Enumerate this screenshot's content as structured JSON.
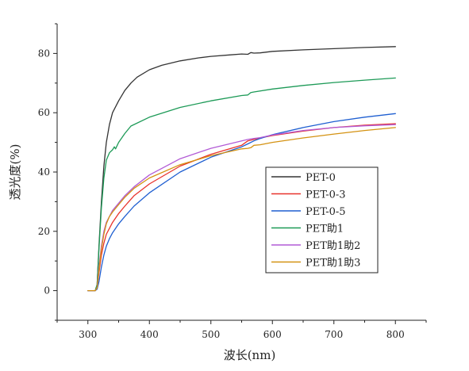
{
  "chart_data": {
    "type": "line",
    "title": "",
    "xlabel": "波长(nm)",
    "ylabel": "透光度(%)",
    "xlim": [
      250,
      850
    ],
    "ylim": [
      -10,
      90
    ],
    "xticks": [
      300,
      400,
      500,
      600,
      700,
      800
    ],
    "yticks": [
      0,
      20,
      40,
      60,
      80
    ],
    "grid": false,
    "legend_position": "center-right",
    "series": [
      {
        "name": "PET-0",
        "color": "#333333",
        "x": [
          300,
          312,
          315,
          318,
          322,
          326,
          330,
          335,
          340,
          350,
          360,
          370,
          380,
          400,
          420,
          450,
          480,
          500,
          530,
          550,
          560,
          565,
          570,
          580,
          600,
          650,
          700,
          750,
          800
        ],
        "y": [
          0,
          0,
          2,
          15,
          30,
          42,
          50,
          56,
          60,
          64,
          67.5,
          70,
          72,
          74.5,
          76,
          77.5,
          78.5,
          79,
          79.5,
          79.8,
          79.7,
          80.3,
          80.1,
          80.2,
          80.7,
          81.2,
          81.6,
          82,
          82.3
        ]
      },
      {
        "name": "PET-0-3",
        "color": "#e8332c",
        "x": [
          300,
          312,
          315,
          318,
          322,
          326,
          330,
          335,
          340,
          350,
          360,
          375,
          400,
          450,
          500,
          550,
          560,
          570,
          580,
          600,
          650,
          700,
          750,
          800
        ],
        "y": [
          0,
          0,
          1,
          6,
          12,
          16,
          19,
          21,
          23,
          26,
          28.5,
          32,
          36,
          42,
          46,
          49,
          50.5,
          51,
          51.5,
          52.3,
          53.8,
          55,
          55.8,
          56.3
        ]
      },
      {
        "name": "PET-0-5",
        "color": "#1f5fd1",
        "x": [
          300,
          312,
          315,
          318,
          322,
          326,
          330,
          335,
          340,
          350,
          360,
          375,
          400,
          450,
          500,
          550,
          560,
          570,
          580,
          600,
          650,
          700,
          750,
          800
        ],
        "y": [
          0,
          0,
          0.5,
          3,
          8,
          12,
          15,
          17.5,
          19.5,
          22.5,
          25,
          28.5,
          33,
          40,
          45,
          48.5,
          49.5,
          50.5,
          51.3,
          52.6,
          55,
          57,
          58.5,
          59.7
        ]
      },
      {
        "name": "PET助1",
        "color": "#1d9a57",
        "x": [
          300,
          312,
          315,
          318,
          322,
          326,
          330,
          335,
          340,
          343,
          345,
          350,
          360,
          370,
          400,
          450,
          500,
          550,
          560,
          565,
          570,
          600,
          650,
          700,
          750,
          800
        ],
        "y": [
          0,
          0,
          2,
          14,
          28,
          38,
          44,
          46.5,
          47.5,
          48.5,
          47.8,
          50,
          53,
          55.5,
          58.5,
          61.8,
          64,
          65.8,
          66,
          66.8,
          67,
          68,
          69.2,
          70.2,
          71,
          71.7
        ]
      },
      {
        "name": "PET助1助2",
        "color": "#b25bd6",
        "x": [
          300,
          312,
          315,
          318,
          322,
          326,
          330,
          335,
          340,
          350,
          360,
          375,
          400,
          450,
          500,
          550,
          560,
          570,
          580,
          600,
          650,
          700,
          750,
          800
        ],
        "y": [
          0,
          0,
          1,
          8,
          15,
          20,
          23,
          25,
          27,
          29.5,
          32,
          35,
          39,
          44.5,
          48,
          50.5,
          51,
          51.3,
          51.6,
          52.5,
          54,
          55,
          55.6,
          56
        ]
      },
      {
        "name": "PET助1助3",
        "color": "#d49212",
        "x": [
          300,
          312,
          315,
          318,
          322,
          326,
          330,
          335,
          340,
          350,
          360,
          375,
          400,
          450,
          500,
          550,
          560,
          565,
          570,
          580,
          600,
          650,
          700,
          750,
          800
        ],
        "y": [
          0,
          0,
          1,
          7,
          14,
          19,
          22.5,
          25,
          26.5,
          29,
          31.5,
          34.5,
          38,
          42.5,
          45.5,
          47.8,
          48,
          48.2,
          49,
          49.2,
          50,
          51.5,
          52.8,
          54,
          55
        ]
      }
    ]
  }
}
